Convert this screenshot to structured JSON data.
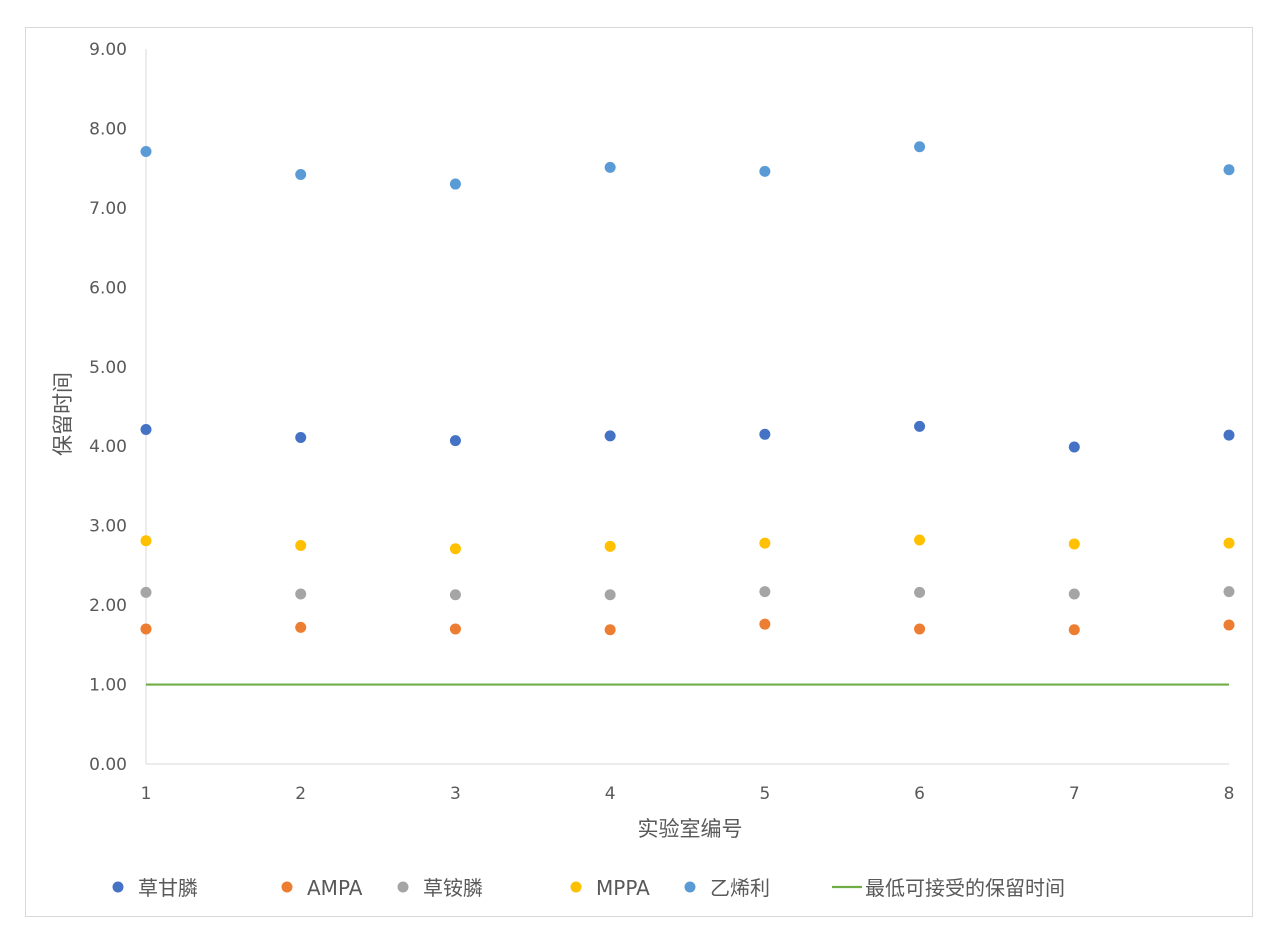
{
  "chart_data": {
    "type": "scatter",
    "x": [
      1,
      2,
      3,
      4,
      5,
      6,
      7,
      8
    ],
    "xlabel": "实验室编号",
    "ylabel": "保留时间",
    "xlim": [
      1,
      8
    ],
    "ylim": [
      0,
      9
    ],
    "y_ticks": [
      "0.00",
      "1.00",
      "2.00",
      "3.00",
      "4.00",
      "5.00",
      "6.00",
      "7.00",
      "8.00",
      "9.00"
    ],
    "x_ticks": [
      "1",
      "2",
      "3",
      "4",
      "5",
      "6",
      "7",
      "8"
    ],
    "grid": false,
    "legend_position": "bottom",
    "series": [
      {
        "name": "草甘膦",
        "color": "#4472c4",
        "kind": "scatter",
        "values": [
          4.21,
          4.11,
          4.07,
          4.13,
          4.15,
          4.25,
          3.99,
          4.14
        ]
      },
      {
        "name": "AMPA",
        "color": "#ed7d31",
        "kind": "scatter",
        "values": [
          1.7,
          1.72,
          1.7,
          1.69,
          1.76,
          1.7,
          1.69,
          1.75
        ]
      },
      {
        "name": "草铵膦",
        "color": "#a5a5a5",
        "kind": "scatter",
        "values": [
          2.16,
          2.14,
          2.13,
          2.13,
          2.17,
          2.16,
          2.14,
          2.17
        ]
      },
      {
        "name": "MPPA",
        "color": "#ffc000",
        "kind": "scatter",
        "values": [
          2.81,
          2.75,
          2.71,
          2.74,
          2.78,
          2.82,
          2.77,
          2.78
        ]
      },
      {
        "name": "乙烯利",
        "color": "#5b9bd5",
        "kind": "scatter",
        "values": [
          7.71,
          7.42,
          7.3,
          7.51,
          7.46,
          7.77,
          null,
          7.48
        ]
      },
      {
        "name": "最低可接受的保留时间",
        "color": "#70ad47",
        "kind": "line",
        "values": [
          1,
          1,
          1,
          1,
          1,
          1,
          1,
          1
        ]
      }
    ]
  }
}
